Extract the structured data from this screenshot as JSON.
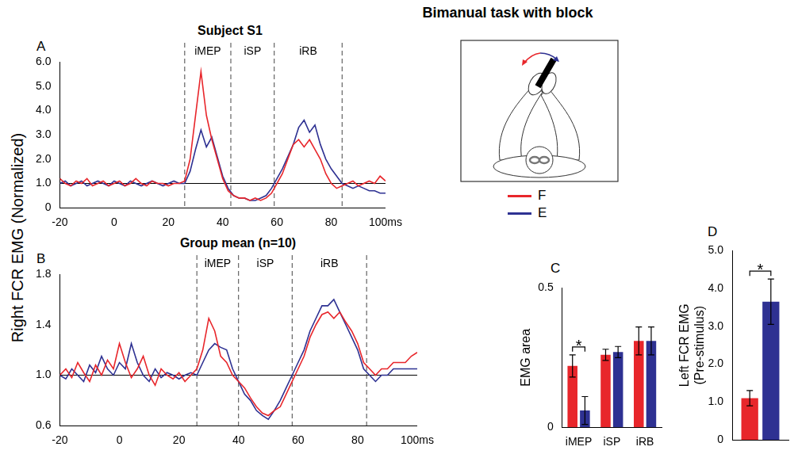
{
  "title": "Bimanual task with block",
  "y_label": "Right FCR EMG (Normalized)",
  "diagram": {
    "legend": [
      {
        "name": "F",
        "color": "#e8262b"
      },
      {
        "name": "E",
        "color": "#2e3192"
      }
    ]
  },
  "chart_data": [
    {
      "type": "line",
      "letter": "A",
      "title": "Subject S1",
      "grid": false,
      "x": [
        -20,
        -18,
        -16,
        -14,
        -12,
        -10,
        -8,
        -6,
        -4,
        -2,
        0,
        2,
        4,
        6,
        8,
        10,
        12,
        14,
        16,
        18,
        20,
        22,
        24,
        26,
        28,
        30,
        32,
        34,
        36,
        38,
        40,
        42,
        44,
        46,
        48,
        50,
        52,
        54,
        56,
        58,
        60,
        62,
        64,
        66,
        68,
        70,
        72,
        74,
        76,
        78,
        80,
        82,
        84,
        86,
        88,
        90,
        92,
        94,
        96,
        98,
        100
      ],
      "series": [
        {
          "name": "F",
          "color": "#e8262b",
          "values": [
            1.2,
            1.0,
            0.9,
            1.1,
            1.0,
            1.2,
            0.9,
            1.0,
            1.1,
            0.9,
            1.0,
            1.1,
            0.9,
            1.0,
            1.2,
            1.0,
            0.9,
            1.1,
            1.0,
            1.0,
            0.9,
            1.0,
            1.0,
            1.1,
            2.0,
            3.8,
            5.6,
            3.8,
            2.8,
            2.0,
            1.2,
            0.7,
            0.5,
            0.4,
            0.4,
            0.3,
            0.4,
            0.3,
            0.4,
            0.6,
            1.0,
            1.4,
            2.0,
            2.6,
            2.8,
            2.5,
            2.8,
            2.4,
            2.0,
            1.4,
            1.0,
            0.8,
            0.9,
            1.0,
            1.1,
            0.9,
            1.0,
            1.1,
            1.0,
            1.3,
            1.1
          ]
        },
        {
          "name": "E",
          "color": "#2e3192",
          "values": [
            1.0,
            1.1,
            0.9,
            1.0,
            1.1,
            0.9,
            1.0,
            1.1,
            1.0,
            0.9,
            1.1,
            1.0,
            0.9,
            1.1,
            1.0,
            0.9,
            1.0,
            1.1,
            1.0,
            0.9,
            1.0,
            1.1,
            1.0,
            1.0,
            1.5,
            2.4,
            3.2,
            2.5,
            2.9,
            2.1,
            1.3,
            0.8,
            0.5,
            0.4,
            0.4,
            0.3,
            0.3,
            0.4,
            0.5,
            0.8,
            1.2,
            1.6,
            2.1,
            2.6,
            3.3,
            3.6,
            3.1,
            3.4,
            2.6,
            2.0,
            1.6,
            1.3,
            1.0,
            0.9,
            0.8,
            0.9,
            0.8,
            0.7,
            0.7,
            0.6,
            0.6
          ]
        }
      ],
      "xlim": [
        -20,
        100
      ],
      "xticks": [
        -20,
        0,
        20,
        40,
        60,
        80,
        {
          "value": 100,
          "label": "100ms"
        }
      ],
      "ylim": [
        0,
        6
      ],
      "yticks": [
        0,
        {
          "value": 1,
          "label": "1.0"
        },
        {
          "value": 2,
          "label": "2.0"
        },
        {
          "value": 3,
          "label": "3.0"
        },
        {
          "value": 4,
          "label": "4.0"
        },
        {
          "value": 5,
          "label": "5.0"
        },
        {
          "value": 6,
          "label": "6.0"
        }
      ],
      "reference_line": 1,
      "windows": [
        {
          "label": "iMEP",
          "start": 26,
          "end": 43
        },
        {
          "label": "iSP",
          "start": 43,
          "end": 59
        },
        {
          "label": "iRB",
          "start": 59,
          "end": 84
        }
      ]
    },
    {
      "type": "line",
      "letter": "B",
      "title": "Group mean (n=10)",
      "grid": false,
      "x": [
        -20,
        -18,
        -16,
        -14,
        -12,
        -10,
        -8,
        -6,
        -4,
        -2,
        0,
        2,
        4,
        6,
        8,
        10,
        12,
        14,
        16,
        18,
        20,
        22,
        24,
        26,
        28,
        30,
        32,
        34,
        36,
        38,
        40,
        42,
        44,
        46,
        48,
        50,
        52,
        54,
        56,
        58,
        60,
        62,
        64,
        66,
        68,
        70,
        72,
        74,
        76,
        78,
        80,
        82,
        84,
        86,
        88,
        90,
        92,
        94,
        96,
        98,
        100
      ],
      "series": [
        {
          "name": "F",
          "color": "#e8262b",
          "values": [
            1.0,
            1.05,
            0.98,
            1.1,
            1.02,
            0.95,
            1.08,
            1.0,
            1.12,
            1.05,
            1.25,
            1.1,
            0.98,
            1.05,
            1.15,
            1.0,
            0.92,
            1.05,
            1.0,
            0.97,
            1.02,
            0.95,
            1.0,
            1.05,
            1.2,
            1.45,
            1.35,
            1.15,
            1.1,
            1.0,
            0.95,
            0.9,
            0.82,
            0.75,
            0.7,
            0.68,
            0.72,
            0.75,
            0.85,
            0.95,
            1.05,
            1.15,
            1.3,
            1.4,
            1.48,
            1.5,
            1.45,
            1.5,
            1.42,
            1.35,
            1.25,
            1.1,
            1.05,
            1.0,
            1.05,
            1.05,
            1.1,
            1.1,
            1.1,
            1.15,
            1.18
          ]
        },
        {
          "name": "E",
          "color": "#2e3192",
          "values": [
            1.0,
            0.97,
            1.05,
            1.0,
            0.95,
            1.08,
            1.02,
            1.15,
            1.05,
            1.0,
            1.1,
            1.05,
            1.25,
            1.1,
            1.0,
            0.95,
            1.05,
            0.98,
            1.02,
            1.0,
            0.97,
            1.0,
            1.02,
            1.0,
            1.1,
            1.2,
            1.25,
            1.22,
            1.2,
            1.05,
            0.95,
            0.85,
            0.8,
            0.72,
            0.68,
            0.65,
            0.72,
            0.8,
            0.9,
            1.0,
            1.1,
            1.2,
            1.35,
            1.45,
            1.55,
            1.55,
            1.6,
            1.5,
            1.4,
            1.3,
            1.2,
            1.05,
            1.0,
            0.95,
            1.0,
            1.0,
            1.05,
            1.05,
            1.05,
            1.05,
            1.05
          ]
        }
      ],
      "xlim": [
        -20,
        100
      ],
      "xticks": [
        -20,
        0,
        20,
        40,
        60,
        80,
        {
          "value": 100,
          "label": "100ms"
        }
      ],
      "ylim": [
        0.6,
        1.8
      ],
      "yticks": [
        0.6,
        {
          "value": 1,
          "label": "1.0"
        },
        1.4,
        1.8
      ],
      "reference_line": 1,
      "windows": [
        {
          "label": "iMEP",
          "start": 26,
          "end": 40
        },
        {
          "label": "iSP",
          "start": 40,
          "end": 58
        },
        {
          "label": "iRB",
          "start": 58,
          "end": 83
        }
      ]
    },
    {
      "type": "bar",
      "letter": "C",
      "y_label": "EMG area",
      "grid": false,
      "categories": [
        "iMEP",
        "iSP",
        "iRB"
      ],
      "series": [
        {
          "name": "F",
          "color": "#e8262b",
          "values": [
            0.22,
            0.26,
            0.31
          ],
          "errors": [
            0.04,
            0.02,
            0.05
          ]
        },
        {
          "name": "E",
          "color": "#2e3192",
          "values": [
            0.06,
            0.27,
            0.31
          ],
          "errors": [
            0.05,
            0.02,
            0.05
          ]
        }
      ],
      "ylim": [
        0,
        0.5
      ],
      "yticks": [
        0,
        0.5
      ],
      "significance": [
        {
          "category": "iMEP",
          "label": "*"
        }
      ]
    },
    {
      "type": "bar",
      "letter": "D",
      "y_label": "Left FCR EMG (Pre-stimulus)",
      "grid": false,
      "tick_labels": "y",
      "categories": [
        null
      ],
      "series": [
        {
          "name": "F",
          "color": "#e8262b",
          "values": [
            1.1
          ],
          "errors": [
            0.2
          ]
        },
        {
          "name": "E",
          "color": "#2e3192",
          "values": [
            3.65
          ],
          "errors": [
            0.6
          ]
        }
      ],
      "ylim": [
        0,
        5
      ],
      "yticks": [
        0,
        {
          "value": 1,
          "label": "1.0"
        },
        {
          "value": 2,
          "label": "2.0"
        },
        {
          "value": 3,
          "label": "3.0"
        },
        {
          "value": 4,
          "label": "4.0"
        },
        {
          "value": 5,
          "label": "5.0"
        }
      ],
      "significance": [
        {
          "category": null,
          "label": "*"
        }
      ]
    }
  ]
}
